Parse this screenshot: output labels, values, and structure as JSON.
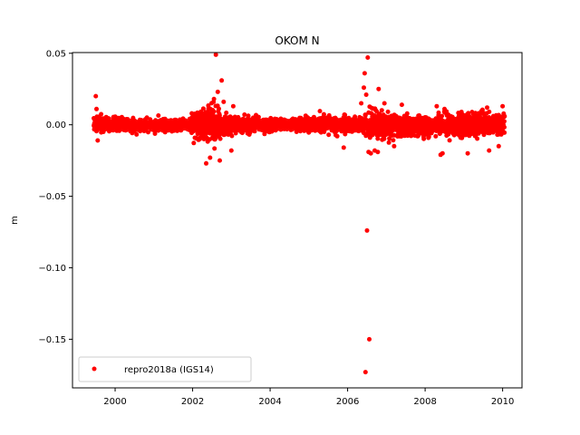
{
  "chart_data": {
    "type": "scatter",
    "title": "OKOM N",
    "xlabel": "",
    "ylabel": "m",
    "xlim": [
      1998.9,
      2010.5
    ],
    "ylim": [
      -0.184,
      0.0505
    ],
    "x_ticks": [
      2000,
      2002,
      2004,
      2006,
      2008,
      2010
    ],
    "x_tick_labels": [
      "2000",
      "2002",
      "2004",
      "2006",
      "2008",
      "2010"
    ],
    "y_ticks": [
      0.05,
      0.0,
      -0.05,
      -0.1,
      -0.15
    ],
    "y_tick_labels": [
      "0.05",
      "0.00",
      "−0.05",
      "−0.10",
      "−0.15"
    ],
    "grid": false,
    "legend_position": "lower-left",
    "series": [
      {
        "name": "repro2018a (IGS14)",
        "color": "#ff0000",
        "marker": "circle",
        "x_range": [
          1999.45,
          2010.05
        ],
        "noise_envelope": [
          [
            1999.45,
            0.005
          ],
          [
            2001.9,
            0.004
          ],
          [
            2002.1,
            0.012
          ],
          [
            2002.7,
            0.013
          ],
          [
            2003.0,
            0.006
          ],
          [
            2004.5,
            0.004
          ],
          [
            2005.5,
            0.007
          ],
          [
            2006.3,
            0.005
          ],
          [
            2006.6,
            0.011
          ],
          [
            2007.3,
            0.008
          ],
          [
            2008.3,
            0.008
          ],
          [
            2008.8,
            0.009
          ],
          [
            2009.6,
            0.008
          ],
          [
            2010.05,
            0.006
          ]
        ],
        "outliers": [
          {
            "x": 1999.5,
            "y": 0.02
          },
          {
            "x": 1999.52,
            "y": 0.011
          },
          {
            "x": 1999.55,
            "y": -0.011
          },
          {
            "x": 2002.35,
            "y": -0.027
          },
          {
            "x": 2002.45,
            "y": -0.023
          },
          {
            "x": 2002.55,
            "y": 0.018
          },
          {
            "x": 2002.6,
            "y": 0.049
          },
          {
            "x": 2002.65,
            "y": 0.023
          },
          {
            "x": 2002.7,
            "y": -0.025
          },
          {
            "x": 2002.75,
            "y": 0.031
          },
          {
            "x": 2002.8,
            "y": 0.016
          },
          {
            "x": 2003.0,
            "y": -0.018
          },
          {
            "x": 2003.05,
            "y": 0.013
          },
          {
            "x": 2005.9,
            "y": -0.016
          },
          {
            "x": 2006.35,
            "y": 0.015
          },
          {
            "x": 2006.42,
            "y": 0.026
          },
          {
            "x": 2006.44,
            "y": 0.036
          },
          {
            "x": 2006.46,
            "y": -0.173
          },
          {
            "x": 2006.48,
            "y": 0.021
          },
          {
            "x": 2006.5,
            "y": -0.074
          },
          {
            "x": 2006.52,
            "y": 0.047
          },
          {
            "x": 2006.54,
            "y": -0.019
          },
          {
            "x": 2006.56,
            "y": -0.15
          },
          {
            "x": 2006.6,
            "y": -0.02
          },
          {
            "x": 2006.7,
            "y": -0.018
          },
          {
            "x": 2006.78,
            "y": -0.019
          },
          {
            "x": 2006.8,
            "y": 0.025
          },
          {
            "x": 2006.95,
            "y": 0.015
          },
          {
            "x": 2007.2,
            "y": -0.015
          },
          {
            "x": 2007.4,
            "y": 0.014
          },
          {
            "x": 2008.3,
            "y": 0.013
          },
          {
            "x": 2008.4,
            "y": -0.021
          },
          {
            "x": 2008.45,
            "y": -0.02
          },
          {
            "x": 2008.5,
            "y": 0.011
          },
          {
            "x": 2009.1,
            "y": -0.02
          },
          {
            "x": 2009.6,
            "y": 0.012
          },
          {
            "x": 2009.65,
            "y": -0.018
          },
          {
            "x": 2009.9,
            "y": -0.015
          },
          {
            "x": 2010.0,
            "y": 0.013
          }
        ]
      }
    ]
  }
}
